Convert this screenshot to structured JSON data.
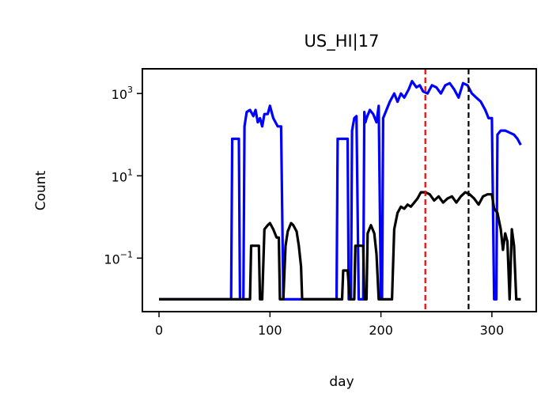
{
  "chart_data": {
    "type": "line",
    "title": "US_HI|17",
    "xlabel": "day",
    "ylabel": "Count",
    "xlim": [
      -15,
      340
    ],
    "ylim_log10": [
      -2.3,
      3.6
    ],
    "yscale": "log",
    "grid": false,
    "xticks": [
      {
        "value": 0,
        "label": "0"
      },
      {
        "value": 100,
        "label": "100"
      },
      {
        "value": 200,
        "label": "200"
      },
      {
        "value": 300,
        "label": "300"
      }
    ],
    "yticks": [
      {
        "exp": 3,
        "base": "10",
        "sup": "3"
      },
      {
        "exp": 1,
        "base": "10",
        "sup": "1"
      },
      {
        "exp": -1,
        "base": "10",
        "sup": "−1"
      }
    ],
    "vlines": [
      {
        "x": 240,
        "color": "#ff0000"
      },
      {
        "x": 279,
        "color": "#000000"
      }
    ],
    "series": [
      {
        "color": "#0000ff",
        "log10_values": [
          [
            0,
            -2
          ],
          [
            65,
            -2
          ],
          [
            66,
            1.9
          ],
          [
            72,
            1.9
          ],
          [
            73,
            -2
          ],
          [
            76,
            -2
          ],
          [
            77,
            2.2
          ],
          [
            79,
            2.55
          ],
          [
            82,
            2.6
          ],
          [
            85,
            2.45
          ],
          [
            87,
            2.6
          ],
          [
            89,
            2.3
          ],
          [
            91,
            2.4
          ],
          [
            93,
            2.2
          ],
          [
            95,
            2.5
          ],
          [
            98,
            2.5
          ],
          [
            100,
            2.7
          ],
          [
            103,
            2.4
          ],
          [
            107,
            2.2
          ],
          [
            110,
            2.2
          ],
          [
            112,
            -2
          ],
          [
            160,
            -2
          ],
          [
            161,
            1.9
          ],
          [
            170,
            1.9
          ],
          [
            171,
            -2
          ],
          [
            173,
            -2
          ],
          [
            174,
            2.1
          ],
          [
            176,
            2.4
          ],
          [
            178,
            2.45
          ],
          [
            180,
            -2
          ],
          [
            184,
            -2
          ],
          [
            185,
            2.55
          ],
          [
            186,
            2.3
          ],
          [
            187,
            2.4
          ],
          [
            190,
            2.6
          ],
          [
            193,
            2.5
          ],
          [
            196,
            2.3
          ],
          [
            198,
            2.7
          ],
          [
            200,
            -2
          ],
          [
            201,
            -2
          ],
          [
            202,
            2.4
          ],
          [
            205,
            2.6
          ],
          [
            208,
            2.8
          ],
          [
            212,
            3.0
          ],
          [
            215,
            2.8
          ],
          [
            218,
            3.0
          ],
          [
            221,
            2.9
          ],
          [
            225,
            3.1
          ],
          [
            228,
            3.3
          ],
          [
            232,
            3.15
          ],
          [
            235,
            3.2
          ],
          [
            238,
            3.05
          ],
          [
            242,
            3.0
          ],
          [
            246,
            3.2
          ],
          [
            250,
            3.15
          ],
          [
            254,
            3.0
          ],
          [
            258,
            3.2
          ],
          [
            262,
            3.25
          ],
          [
            266,
            3.1
          ],
          [
            270,
            2.9
          ],
          [
            274,
            3.25
          ],
          [
            278,
            3.2
          ],
          [
            282,
            3.0
          ],
          [
            286,
            2.9
          ],
          [
            290,
            2.8
          ],
          [
            294,
            2.6
          ],
          [
            297,
            2.4
          ],
          [
            300,
            2.4
          ],
          [
            302,
            -2
          ],
          [
            304,
            -2
          ],
          [
            305,
            2.0
          ],
          [
            308,
            2.1
          ],
          [
            312,
            2.1
          ],
          [
            316,
            2.05
          ],
          [
            320,
            2.0
          ],
          [
            323,
            1.9
          ],
          [
            326,
            1.75
          ]
        ]
      },
      {
        "color": "#000000",
        "log10_values": [
          [
            0,
            -2
          ],
          [
            82,
            -2
          ],
          [
            83,
            -0.7
          ],
          [
            90,
            -0.7
          ],
          [
            91,
            -2
          ],
          [
            93,
            -2
          ],
          [
            95,
            -0.3
          ],
          [
            98,
            -0.2
          ],
          [
            100,
            -0.15
          ],
          [
            103,
            -0.3
          ],
          [
            106,
            -0.5
          ],
          [
            108,
            -0.5
          ],
          [
            109,
            -2
          ],
          [
            112,
            -2
          ],
          [
            114,
            -0.7
          ],
          [
            116,
            -0.35
          ],
          [
            119,
            -0.15
          ],
          [
            121,
            -0.2
          ],
          [
            124,
            -0.35
          ],
          [
            126,
            -0.7
          ],
          [
            128,
            -1.2
          ],
          [
            129,
            -2
          ],
          [
            165,
            -2
          ],
          [
            166,
            -1.3
          ],
          [
            170,
            -1.3
          ],
          [
            172,
            -2
          ],
          [
            176,
            -2
          ],
          [
            177,
            -0.7
          ],
          [
            184,
            -0.7
          ],
          [
            185,
            -2
          ],
          [
            187,
            -2
          ],
          [
            188,
            -0.4
          ],
          [
            191,
            -0.2
          ],
          [
            194,
            -0.4
          ],
          [
            196,
            -0.9
          ],
          [
            198,
            -2
          ],
          [
            210,
            -2
          ],
          [
            212,
            -0.3
          ],
          [
            215,
            0.1
          ],
          [
            218,
            0.25
          ],
          [
            221,
            0.2
          ],
          [
            224,
            0.3
          ],
          [
            227,
            0.25
          ],
          [
            230,
            0.35
          ],
          [
            233,
            0.45
          ],
          [
            236,
            0.6
          ],
          [
            240,
            0.6
          ],
          [
            244,
            0.55
          ],
          [
            248,
            0.4
          ],
          [
            252,
            0.5
          ],
          [
            256,
            0.35
          ],
          [
            260,
            0.45
          ],
          [
            264,
            0.5
          ],
          [
            268,
            0.35
          ],
          [
            272,
            0.5
          ],
          [
            276,
            0.6
          ],
          [
            280,
            0.55
          ],
          [
            284,
            0.45
          ],
          [
            288,
            0.3
          ],
          [
            292,
            0.5
          ],
          [
            296,
            0.55
          ],
          [
            300,
            0.55
          ],
          [
            302,
            0.2
          ],
          [
            305,
            0.1
          ],
          [
            308,
            -0.3
          ],
          [
            310,
            -0.8
          ],
          [
            312,
            -0.4
          ],
          [
            314,
            -0.6
          ],
          [
            315,
            -1.3
          ],
          [
            316,
            -2
          ],
          [
            318,
            -0.3
          ],
          [
            320,
            -0.7
          ],
          [
            322,
            -2
          ],
          [
            326,
            -2
          ]
        ]
      }
    ]
  }
}
